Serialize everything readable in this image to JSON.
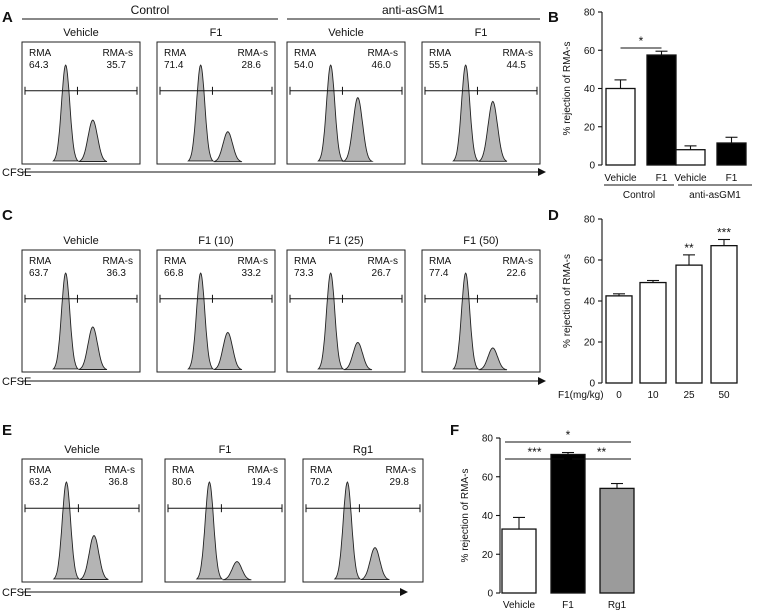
{
  "panel_letters": {
    "A": "A",
    "B": "B",
    "C": "C",
    "D": "D",
    "E": "E",
    "F": "F"
  },
  "panel_A": {
    "group_labels": [
      "Control",
      "anti-asGM1"
    ],
    "histograms": [
      {
        "title": "Vehicle",
        "rma_label": "RMA",
        "rma_value": "64.3",
        "rmas_label": "RMA-s",
        "rmas_value": "35.7"
      },
      {
        "title": "F1",
        "rma_label": "RMA",
        "rma_value": "71.4",
        "rmas_label": "RMA-s",
        "rmas_value": "28.6"
      },
      {
        "title": "Vehicle",
        "rma_label": "RMA",
        "rma_value": "54.0",
        "rmas_label": "RMA-s",
        "rmas_value": "46.0"
      },
      {
        "title": "F1",
        "rma_label": "RMA",
        "rma_value": "55.5",
        "rmas_label": "RMA-s",
        "rmas_value": "44.5"
      }
    ],
    "x_axis_label": "CFSE"
  },
  "panel_C": {
    "histograms": [
      {
        "title": "Vehicle",
        "rma_label": "RMA",
        "rma_value": "63.7",
        "rmas_label": "RMA-s",
        "rmas_value": "36.3"
      },
      {
        "title": "F1 (10)",
        "rma_label": "RMA",
        "rma_value": "66.8",
        "rmas_label": "RMA-s",
        "rmas_value": "33.2"
      },
      {
        "title": "F1 (25)",
        "rma_label": "RMA",
        "rma_value": "73.3",
        "rmas_label": "RMA-s",
        "rmas_value": "26.7"
      },
      {
        "title": "F1 (50)",
        "rma_label": "RMA",
        "rma_value": "77.4",
        "rmas_label": "RMA-s",
        "rmas_value": "22.6"
      }
    ],
    "x_axis_label": "CFSE"
  },
  "panel_E": {
    "histograms": [
      {
        "title": "Vehicle",
        "rma_label": "RMA",
        "rma_value": "63.2",
        "rmas_label": "RMA-s",
        "rmas_value": "36.8"
      },
      {
        "title": "F1",
        "rma_label": "RMA",
        "rma_value": "80.6",
        "rmas_label": "RMA-s",
        "rmas_value": "19.4"
      },
      {
        "title": "Rg1",
        "rma_label": "RMA",
        "rma_value": "70.2",
        "rmas_label": "RMA-s",
        "rmas_value": "29.8"
      }
    ],
    "x_axis_label": "CFSE"
  },
  "chart_data": [
    {
      "type": "bar",
      "panel": "B",
      "categories": [
        "Vehicle",
        "F1",
        "Vehicle",
        "F1"
      ],
      "groups": [
        "Control",
        "anti-asGM1"
      ],
      "values": [
        40,
        57.5,
        8,
        11.5
      ],
      "errors": [
        4.5,
        2,
        2,
        3
      ],
      "fills": [
        "#ffffff",
        "#000000",
        "#ffffff",
        "#000000"
      ],
      "ylabel": "% rejection of RMA-s",
      "ylim": [
        0,
        80
      ],
      "yticks": [
        "0",
        "20",
        "40",
        "60",
        "80"
      ],
      "significance": [
        {
          "label": "*"
        }
      ]
    },
    {
      "type": "bar",
      "panel": "D",
      "categories": [
        "0",
        "10",
        "25",
        "50"
      ],
      "values": [
        42.5,
        49,
        57.5,
        67
      ],
      "errors": [
        1,
        1,
        5,
        3
      ],
      "fills": [
        "#ffffff",
        "#ffffff",
        "#ffffff",
        "#ffffff"
      ],
      "ylabel": "% rejection of RMA-s",
      "xlabel": "F1(mg/kg)",
      "ylim": [
        0,
        80
      ],
      "yticks": [
        "0",
        "20",
        "40",
        "60",
        "80"
      ],
      "annotations": [
        "",
        "",
        "**",
        "***"
      ]
    },
    {
      "type": "bar",
      "panel": "F",
      "categories": [
        "Vehicle",
        "F1",
        "Rg1"
      ],
      "values": [
        33,
        71.5,
        54
      ],
      "errors": [
        6,
        1,
        2.5
      ],
      "fills": [
        "#ffffff",
        "#000000",
        "#9b9b9b"
      ],
      "ylabel": "% rejection of RMA-s",
      "ylim": [
        0,
        80
      ],
      "yticks": [
        "0",
        "20",
        "40",
        "60",
        "80"
      ],
      "significance": [
        {
          "label": "***"
        },
        {
          "label": "*"
        },
        {
          "label": "**"
        }
      ]
    }
  ]
}
